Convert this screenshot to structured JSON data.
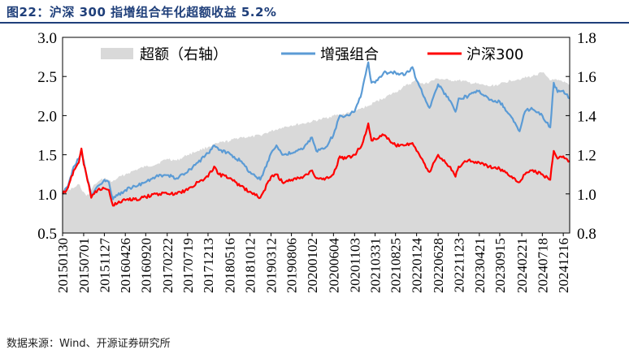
{
  "header": {
    "title": "图22：沪深 300 指增组合年化超额收益 5.2%"
  },
  "footer": {
    "source": "数据来源：Wind、开源证券研究所"
  },
  "chart_data": {
    "type": "line",
    "title": "",
    "xlabel": "",
    "ylabel": "",
    "ylim_left": [
      0.5,
      3.0
    ],
    "yticks_left": [
      "0.5",
      "1.0",
      "1.5",
      "2.0",
      "2.5",
      "3.0"
    ],
    "ylim_right": [
      0.8,
      1.8
    ],
    "yticks_right": [
      "0.8",
      "1.0",
      "1.2",
      "1.4",
      "1.6",
      "1.8"
    ],
    "xlim": [
      "20150130",
      "20250131"
    ],
    "xtick_labels": [
      "20150130",
      "20150701",
      "20151127",
      "20160426",
      "20160920",
      "20170222",
      "20170719",
      "20171213",
      "20180516",
      "20181012",
      "20190312",
      "20190806",
      "20200102",
      "20200604",
      "20201103",
      "20210331",
      "20210825",
      "20220124",
      "20220628",
      "20221123",
      "20230421",
      "20230915",
      "20240221",
      "20240718",
      "20241216"
    ],
    "legend_position": "top",
    "colors": {
      "excess": "#d9d9d9",
      "enhanced": "#5b9bd5",
      "hs300": "#ff0000"
    },
    "series": [
      {
        "name": "超额（右轴）",
        "kind": "area",
        "axis": "right",
        "color": "#d9d9d9",
        "points": [
          [
            "20150130",
            1.0
          ],
          [
            "20150310",
            1.02
          ],
          [
            "20150420",
            1.03
          ],
          [
            "20150527",
            1.05
          ],
          [
            "20150610",
            1.03
          ],
          [
            "20150701",
            1.01
          ],
          [
            "20150720",
            0.99
          ],
          [
            "20150815",
            1.0
          ],
          [
            "20150901",
            1.03
          ],
          [
            "20150920",
            1.05
          ],
          [
            "20151010",
            1.06
          ],
          [
            "20151127",
            1.08
          ],
          [
            "20151230",
            1.07
          ],
          [
            "20160115",
            1.06
          ],
          [
            "20160301",
            1.08
          ],
          [
            "20160426",
            1.1
          ],
          [
            "20160701",
            1.12
          ],
          [
            "20160920",
            1.14
          ],
          [
            "20161201",
            1.15
          ],
          [
            "20170222",
            1.18
          ],
          [
            "20170501",
            1.17
          ],
          [
            "20170719",
            1.2
          ],
          [
            "20171001",
            1.22
          ],
          [
            "20171213",
            1.24
          ],
          [
            "20180301",
            1.26
          ],
          [
            "20180516",
            1.27
          ],
          [
            "20180801",
            1.29
          ],
          [
            "20181012",
            1.29
          ],
          [
            "20181225",
            1.3
          ],
          [
            "20190312",
            1.32
          ],
          [
            "20190601",
            1.34
          ],
          [
            "20190806",
            1.35
          ],
          [
            "20191101",
            1.36
          ],
          [
            "20200102",
            1.37
          ],
          [
            "20200301",
            1.38
          ],
          [
            "20200604",
            1.4
          ],
          [
            "20200901",
            1.41
          ],
          [
            "20201103",
            1.42
          ],
          [
            "20210101",
            1.44
          ],
          [
            "20210215",
            1.45
          ],
          [
            "20210331",
            1.47
          ],
          [
            "20210601",
            1.49
          ],
          [
            "20210825",
            1.52
          ],
          [
            "20211101",
            1.55
          ],
          [
            "20220124",
            1.58
          ],
          [
            "20220315",
            1.56
          ],
          [
            "20220628",
            1.59
          ],
          [
            "20220915",
            1.58
          ],
          [
            "20221123",
            1.58
          ],
          [
            "20230201",
            1.57
          ],
          [
            "20230421",
            1.56
          ],
          [
            "20230701",
            1.55
          ],
          [
            "20230915",
            1.56
          ],
          [
            "20231201",
            1.58
          ],
          [
            "20240221",
            1.59
          ],
          [
            "20240501",
            1.6
          ],
          [
            "20240718",
            1.62
          ],
          [
            "20240920",
            1.58
          ],
          [
            "20241105",
            1.58
          ],
          [
            "20241216",
            1.57
          ],
          [
            "20250131",
            1.56
          ]
        ]
      },
      {
        "name": "增强组合",
        "kind": "line",
        "axis": "left",
        "color": "#5b9bd5",
        "points": [
          [
            "20150130",
            1.0
          ],
          [
            "20150310",
            1.1
          ],
          [
            "20150420",
            1.35
          ],
          [
            "20150527",
            1.45
          ],
          [
            "20150615",
            1.55
          ],
          [
            "20150701",
            1.42
          ],
          [
            "20150720",
            1.25
          ],
          [
            "20150825",
            0.98
          ],
          [
            "20150915",
            1.03
          ],
          [
            "20151010",
            1.1
          ],
          [
            "20151127",
            1.18
          ],
          [
            "20151230",
            1.15
          ],
          [
            "20160128",
            0.93
          ],
          [
            "20160301",
            0.98
          ],
          [
            "20160426",
            1.05
          ],
          [
            "20160701",
            1.1
          ],
          [
            "20160920",
            1.15
          ],
          [
            "20161201",
            1.22
          ],
          [
            "20170222",
            1.24
          ],
          [
            "20170501",
            1.2
          ],
          [
            "20170719",
            1.28
          ],
          [
            "20171001",
            1.4
          ],
          [
            "20171213",
            1.52
          ],
          [
            "20180126",
            1.62
          ],
          [
            "20180301",
            1.56
          ],
          [
            "20180516",
            1.52
          ],
          [
            "20180801",
            1.42
          ],
          [
            "20181012",
            1.28
          ],
          [
            "20181225",
            1.18
          ],
          [
            "20190312",
            1.52
          ],
          [
            "20190420",
            1.62
          ],
          [
            "20190601",
            1.5
          ],
          [
            "20190806",
            1.52
          ],
          [
            "20191101",
            1.58
          ],
          [
            "20200102",
            1.72
          ],
          [
            "20200201",
            1.55
          ],
          [
            "20200401",
            1.58
          ],
          [
            "20200604",
            1.75
          ],
          [
            "20200720",
            2.0
          ],
          [
            "20200901",
            2.0
          ],
          [
            "20201103",
            2.05
          ],
          [
            "20201225",
            2.3
          ],
          [
            "20210210",
            2.68
          ],
          [
            "20210305",
            2.42
          ],
          [
            "20210331",
            2.42
          ],
          [
            "20210601",
            2.55
          ],
          [
            "20210825",
            2.55
          ],
          [
            "20211101",
            2.52
          ],
          [
            "20211225",
            2.62
          ],
          [
            "20220124",
            2.45
          ],
          [
            "20220427",
            2.1
          ],
          [
            "20220628",
            2.4
          ],
          [
            "20220915",
            2.2
          ],
          [
            "20221031",
            2.05
          ],
          [
            "20221123",
            2.22
          ],
          [
            "20230201",
            2.25
          ],
          [
            "20230421",
            2.32
          ],
          [
            "20230701",
            2.2
          ],
          [
            "20230915",
            2.18
          ],
          [
            "20231201",
            2.0
          ],
          [
            "20240205",
            1.8
          ],
          [
            "20240315",
            2.05
          ],
          [
            "20240501",
            2.1
          ],
          [
            "20240718",
            2.0
          ],
          [
            "20240913",
            1.85
          ],
          [
            "20241008",
            2.42
          ],
          [
            "20241105",
            2.3
          ],
          [
            "20241216",
            2.32
          ],
          [
            "20250131",
            2.22
          ]
        ]
      },
      {
        "name": "沪深300",
        "kind": "line",
        "axis": "left",
        "color": "#ff0000",
        "points": [
          [
            "20150130",
            1.0
          ],
          [
            "20150310",
            1.08
          ],
          [
            "20150420",
            1.3
          ],
          [
            "20150527",
            1.4
          ],
          [
            "20150615",
            1.58
          ],
          [
            "20150701",
            1.38
          ],
          [
            "20150720",
            1.25
          ],
          [
            "20150825",
            0.95
          ],
          [
            "20150915",
            1.0
          ],
          [
            "20151010",
            1.05
          ],
          [
            "20151127",
            1.07
          ],
          [
            "20151230",
            1.05
          ],
          [
            "20160128",
            0.85
          ],
          [
            "20160301",
            0.88
          ],
          [
            "20160426",
            0.92
          ],
          [
            "20160701",
            0.93
          ],
          [
            "20160920",
            0.96
          ],
          [
            "20161201",
            1.0
          ],
          [
            "20170222",
            1.0
          ],
          [
            "20170501",
            1.0
          ],
          [
            "20170719",
            1.05
          ],
          [
            "20171001",
            1.15
          ],
          [
            "20171213",
            1.22
          ],
          [
            "20180126",
            1.35
          ],
          [
            "20180301",
            1.25
          ],
          [
            "20180516",
            1.2
          ],
          [
            "20180801",
            1.1
          ],
          [
            "20181012",
            1.03
          ],
          [
            "20181225",
            0.95
          ],
          [
            "20190312",
            1.22
          ],
          [
            "20190420",
            1.25
          ],
          [
            "20190601",
            1.15
          ],
          [
            "20190806",
            1.18
          ],
          [
            "20191101",
            1.22
          ],
          [
            "20200102",
            1.3
          ],
          [
            "20200201",
            1.2
          ],
          [
            "20200401",
            1.18
          ],
          [
            "20200604",
            1.25
          ],
          [
            "20200720",
            1.48
          ],
          [
            "20200901",
            1.45
          ],
          [
            "20201103",
            1.5
          ],
          [
            "20201225",
            1.62
          ],
          [
            "20210210",
            1.9
          ],
          [
            "20210305",
            1.68
          ],
          [
            "20210331",
            1.7
          ],
          [
            "20210601",
            1.75
          ],
          [
            "20210825",
            1.62
          ],
          [
            "20211101",
            1.62
          ],
          [
            "20211225",
            1.65
          ],
          [
            "20220124",
            1.55
          ],
          [
            "20220427",
            1.28
          ],
          [
            "20220628",
            1.5
          ],
          [
            "20220915",
            1.35
          ],
          [
            "20221031",
            1.22
          ],
          [
            "20221123",
            1.35
          ],
          [
            "20230201",
            1.43
          ],
          [
            "20230421",
            1.4
          ],
          [
            "20230701",
            1.35
          ],
          [
            "20230915",
            1.32
          ],
          [
            "20231201",
            1.22
          ],
          [
            "20240205",
            1.15
          ],
          [
            "20240315",
            1.25
          ],
          [
            "20240501",
            1.3
          ],
          [
            "20240718",
            1.25
          ],
          [
            "20240913",
            1.18
          ],
          [
            "20241008",
            1.55
          ],
          [
            "20241105",
            1.45
          ],
          [
            "20241216",
            1.48
          ],
          [
            "20250131",
            1.42
          ]
        ]
      }
    ]
  }
}
